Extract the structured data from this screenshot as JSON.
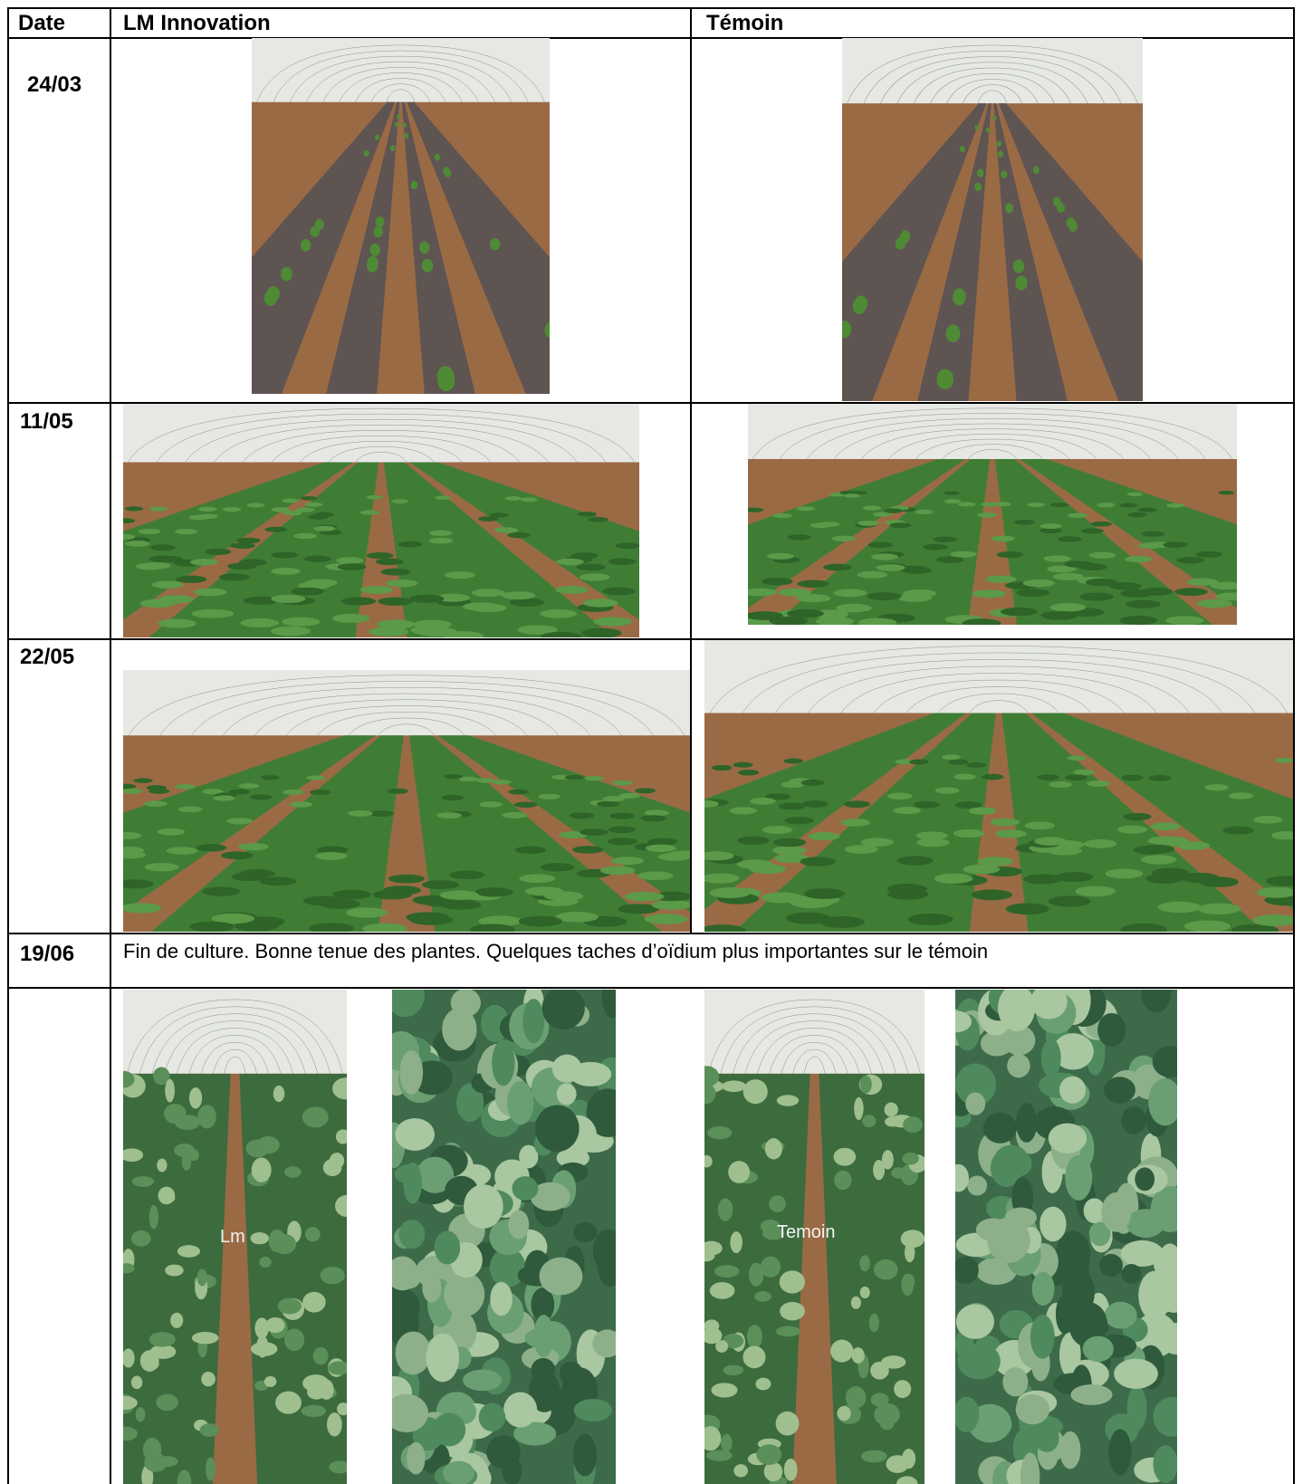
{
  "header": {
    "date": "Date",
    "lm": "LM Innovation",
    "temoin": "Témoin"
  },
  "rows": [
    {
      "date": "24/03"
    },
    {
      "date": "11/05"
    },
    {
      "date": "22/05"
    }
  ],
  "note": {
    "date": "19/06",
    "text": "Fin de culture.  Bonne tenue des plantes. Quelques taches d’oïdium plus importantes sur le témoin"
  },
  "photo_labels": [
    "Lm",
    "Temoin"
  ]
}
